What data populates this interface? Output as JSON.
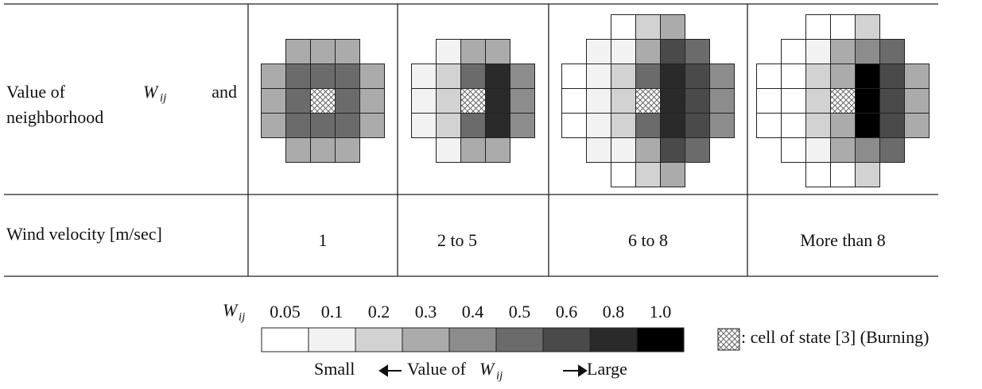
{
  "table": {
    "row_label_1": {
      "before": "Value of",
      "symbol": "W",
      "subscript": "ij",
      "after": "and",
      "line2": "neighborhood"
    },
    "row_label_2": "Wind velocity [m/sec]",
    "columns": [
      "1",
      "2 to 5",
      "6 to 8",
      "More than 8"
    ]
  },
  "grids": [
    {
      "cells": [
        [
          null,
          0.3,
          0.3,
          0.3,
          null
        ],
        [
          0.3,
          0.5,
          0.5,
          0.5,
          0.3
        ],
        [
          0.3,
          0.5,
          null,
          0.5,
          0.3
        ],
        [
          0.3,
          0.5,
          0.5,
          0.5,
          0.3
        ],
        [
          null,
          0.3,
          0.3,
          0.3,
          null
        ]
      ]
    },
    {
      "cells": [
        [
          null,
          0.1,
          0.3,
          0.3,
          null
        ],
        [
          0.1,
          0.2,
          0.5,
          0.8,
          0.4
        ],
        [
          0.1,
          0.2,
          null,
          0.8,
          0.4
        ],
        [
          0.1,
          0.2,
          0.5,
          0.8,
          0.4
        ],
        [
          null,
          0.1,
          0.3,
          0.3,
          null
        ]
      ]
    },
    {
      "cells": [
        [
          null,
          null,
          0.05,
          0.2,
          0.3,
          null,
          null
        ],
        [
          null,
          0.1,
          0.1,
          0.3,
          0.6,
          0.5,
          null
        ],
        [
          0.05,
          0.1,
          0.2,
          0.5,
          0.8,
          0.6,
          0.4
        ],
        [
          0.05,
          0.1,
          0.2,
          null,
          0.8,
          0.6,
          0.4
        ],
        [
          0.05,
          0.1,
          0.2,
          0.5,
          0.8,
          0.6,
          0.4
        ],
        [
          null,
          0.1,
          0.1,
          0.3,
          0.6,
          0.5,
          null
        ],
        [
          null,
          null,
          0.05,
          0.2,
          0.3,
          null,
          null
        ]
      ]
    },
    {
      "cells": [
        [
          null,
          null,
          0.05,
          0.05,
          0.2,
          null,
          null
        ],
        [
          null,
          0.05,
          0.1,
          0.3,
          0.4,
          0.5,
          null
        ],
        [
          0.05,
          0.05,
          0.2,
          0.3,
          1,
          0.6,
          0.3
        ],
        [
          0.05,
          0.05,
          0.2,
          null,
          1,
          0.6,
          0.3
        ],
        [
          0.05,
          0.05,
          0.2,
          0.3,
          1,
          0.6,
          0.3
        ],
        [
          null,
          0.05,
          0.1,
          0.3,
          0.4,
          0.5,
          null
        ],
        [
          null,
          null,
          0.05,
          0.05,
          0.2,
          null,
          null
        ]
      ]
    }
  ],
  "legend": {
    "symbol": "W",
    "subscript": "ij",
    "values": [
      0.05,
      0.1,
      0.2,
      0.3,
      0.4,
      0.5,
      0.6,
      0.8,
      {
        "value": 1,
        "label": "1.0"
      }
    ],
    "colors": [
      "#ffffff",
      "#f2f2f2",
      "#d2d2d2",
      "#ababab",
      "#8c8c8c",
      "#6b6b6b",
      "#4a4a4a",
      "#2a2a2a",
      "#000000"
    ],
    "caption": {
      "small": "Small",
      "middle": "Value of",
      "symbol": "W",
      "subscript": "ij",
      "large": "Large"
    },
    "burning": ": cell of state [3] (Burning)"
  }
}
